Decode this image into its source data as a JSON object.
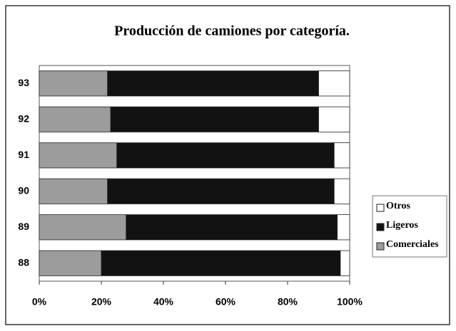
{
  "chart_data": {
    "type": "stacked-barh",
    "title": "Producción de camiones por categoría.",
    "categories": [
      "88",
      "89",
      "90",
      "91",
      "92",
      "93"
    ],
    "series": [
      {
        "name": "Comerciales",
        "color": "#9c9c9c",
        "values": [
          20,
          28,
          22,
          25,
          23,
          22
        ]
      },
      {
        "name": "Ligeros",
        "color": "#121212",
        "values": [
          77,
          68,
          73,
          70,
          67,
          68
        ]
      },
      {
        "name": "Otros",
        "color": "#ffffff",
        "values": [
          3,
          4,
          5,
          5,
          10,
          10
        ]
      }
    ],
    "xlim": [
      0,
      100
    ],
    "xticks": [
      {
        "value": 0,
        "label": "0%"
      },
      {
        "value": 20,
        "label": "20%"
      },
      {
        "value": 40,
        "label": "40%"
      },
      {
        "value": 60,
        "label": "60%"
      },
      {
        "value": 80,
        "label": "80%"
      },
      {
        "value": 100,
        "label": "100%"
      }
    ],
    "legend": "right"
  }
}
